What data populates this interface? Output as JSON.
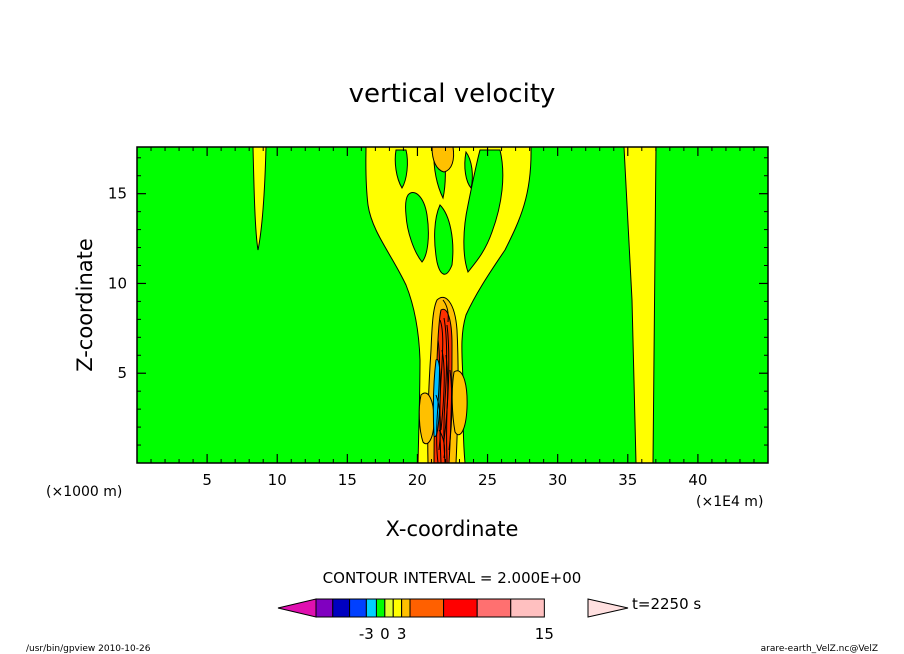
{
  "chart_data": {
    "type": "contour",
    "title": "vertical velocity",
    "xlabel": "X-coordinate",
    "ylabel": "Z-coordinate",
    "x_unit_left": "(×1000 m)",
    "x_unit_right": "(×1E4 m)",
    "xlim": [
      0,
      45
    ],
    "ylim": [
      0,
      17.6
    ],
    "x_ticks": [
      5,
      10,
      15,
      20,
      25,
      30,
      35,
      40
    ],
    "y_ticks": [
      5,
      10,
      15
    ],
    "contour_interval": "CONTOUR INTERVAL = 2.000E+00",
    "time_label": "t=2250 s",
    "colorbar": {
      "colors": [
        "#e010b0",
        "#8000c0",
        "#0000c0",
        "#0040ff",
        "#00d0ff",
        "#00ff00",
        "#e0ff30",
        "#ffff00",
        "#ffc000",
        "#ff6000",
        "#ff0000",
        "#ff7070",
        "#ffc0c0",
        "#ffe0e0"
      ],
      "tick_labels": [
        "-3",
        "0",
        "3",
        "15"
      ],
      "tick_values": [
        -3,
        0,
        3,
        15
      ]
    },
    "field_colors": {
      "background": "#00ff00",
      "weak_updraft": "#ffff00",
      "moderate_updraft": "#ffc000",
      "strong_updraft": "#ff3000",
      "downdraft": "#00c0ff"
    }
  },
  "footer": {
    "left": "/usr/bin/gpview   2010-10-26",
    "right": "arare-earth_VelZ.nc@VelZ"
  }
}
